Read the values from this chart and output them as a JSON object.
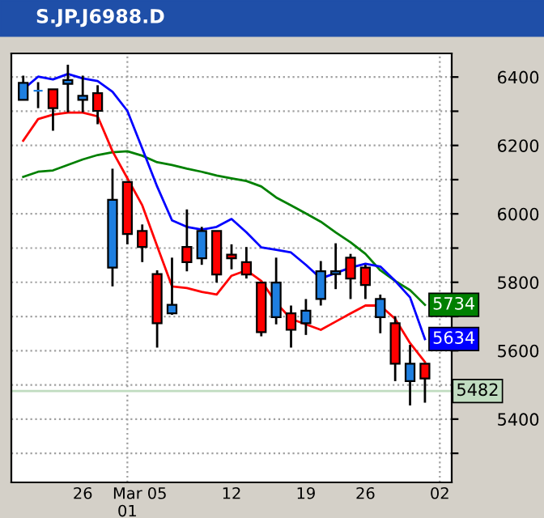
{
  "chart_data": {
    "type": "candlestick",
    "title": "S.JP.J6988.D",
    "categories": [
      null,
      null,
      null,
      null,
      "26",
      null,
      null,
      "Mar\n01",
      null,
      "05",
      null,
      null,
      null,
      null,
      "12",
      null,
      null,
      null,
      null,
      "19",
      null,
      null,
      null,
      "26",
      null,
      null,
      null,
      null,
      "02"
    ],
    "ohlc": [
      [
        6333,
        6404,
        6333,
        6383
      ],
      [
        6360,
        6385,
        6309,
        6360
      ],
      [
        6364,
        6364,
        6243,
        6309
      ],
      [
        6380,
        6436,
        6297,
        6391
      ],
      [
        6333,
        6404,
        6297,
        6345
      ],
      [
        6353,
        6376,
        6262,
        6301
      ],
      [
        5843,
        6132,
        5788,
        6041
      ],
      [
        6093,
        6093,
        5911,
        5941
      ],
      [
        5950,
        5969,
        5859,
        5903
      ],
      [
        5824,
        5835,
        5609,
        5680
      ],
      [
        5709,
        5872,
        5705,
        5734
      ],
      [
        5903,
        6013,
        5832,
        5859
      ],
      [
        5870,
        5962,
        5851,
        5950
      ],
      [
        5950,
        5950,
        5799,
        5823
      ],
      [
        5881,
        5911,
        5838,
        5870
      ],
      [
        5859,
        5903,
        5811,
        5823
      ],
      [
        5799,
        5799,
        5642,
        5654
      ],
      [
        5698,
        5872,
        5677,
        5799
      ],
      [
        5709,
        5732,
        5609,
        5661
      ],
      [
        5680,
        5751,
        5646,
        5717
      ],
      [
        5751,
        5862,
        5732,
        5832
      ],
      [
        5824,
        5914,
        5780,
        5832
      ],
      [
        5872,
        5883,
        5751,
        5811
      ],
      [
        5843,
        5851,
        5751,
        5792
      ],
      [
        5698,
        5764,
        5651,
        5751
      ],
      [
        5680,
        5701,
        5511,
        5562
      ],
      [
        5511,
        5617,
        5440,
        5562
      ],
      [
        5562,
        5562,
        5448,
        5519
      ],
      null
    ],
    "colors": [
      "#1e7fe0",
      "#1e7fe0",
      "#ff0000",
      "#1e7fe0",
      "#1e7fe0",
      "#ff0000",
      "#1e7fe0",
      "#ff0000",
      "#ff0000",
      "#ff0000",
      "#1e7fe0",
      "#ff0000",
      "#1e7fe0",
      "#ff0000",
      "#ff0000",
      "#ff0000",
      "#ff0000",
      "#1e7fe0",
      "#ff0000",
      "#1e7fe0",
      "#1e7fe0",
      "#1e7fe0",
      "#ff0000",
      "#ff0000",
      "#1e7fe0",
      "#ff0000",
      "#1e7fe0",
      "#ff0000",
      null
    ],
    "series": [
      {
        "type": "line",
        "color": "#008000",
        "values": [
          6108,
          6123,
          6127,
          6143,
          6159,
          6172,
          6180,
          6183,
          6170,
          6151,
          6143,
          6132,
          6123,
          6112,
          6104,
          6096,
          6080,
          6048,
          6025,
          6001,
          5977,
          5946,
          5917,
          5883,
          5835,
          5804,
          5777,
          5734,
          null
        ],
        "value_labels": [
          null,
          null,
          null,
          null,
          null,
          null,
          null,
          null,
          null,
          null,
          null,
          null,
          null,
          null,
          null,
          null,
          null,
          null,
          null,
          null,
          null,
          null,
          null,
          null,
          null,
          null,
          null,
          "5734",
          null
        ]
      },
      {
        "type": "line",
        "color": "#0000ff",
        "values": [
          6364,
          6401,
          6393,
          6409,
          6396,
          6388,
          6357,
          6301,
          6191,
          6080,
          5981,
          5962,
          5954,
          5962,
          5985,
          5946,
          5902,
          5895,
          5887,
          5851,
          5811,
          5827,
          5843,
          5854,
          5846,
          5804,
          5756,
          5634,
          null
        ],
        "value_labels": [
          null,
          null,
          null,
          null,
          null,
          null,
          null,
          null,
          null,
          null,
          null,
          null,
          null,
          null,
          null,
          null,
          null,
          null,
          null,
          null,
          null,
          null,
          null,
          null,
          null,
          null,
          null,
          "5634",
          null
        ]
      },
      {
        "type": "line",
        "color": "#ff0000",
        "values": [
          6214,
          6277,
          6290,
          6296,
          6296,
          6285,
          6183,
          6104,
          6025,
          5906,
          5788,
          5783,
          5772,
          5764,
          5819,
          5835,
          5804,
          5740,
          5693,
          5677,
          5661,
          5685,
          5709,
          5732,
          5732,
          5693,
          5622,
          5567,
          null
        ]
      }
    ],
    "ylim": [
      5215,
      6469
    ],
    "yticks": [
      {
        "value": 5300,
        "label": null
      },
      5400,
      {
        "value": 5500,
        "label": null
      },
      5600,
      {
        "value": 5700,
        "label": null
      },
      5800,
      {
        "value": 5900,
        "label": null
      },
      6000,
      {
        "value": 6100,
        "label": null
      },
      6200,
      {
        "value": 6300,
        "label": null
      },
      6400
    ],
    "grid": "y",
    "ref_lines": [
      {
        "axis": "y",
        "value": 5482,
        "label": "5482",
        "color": "#c0dcc0"
      },
      {
        "axis": "x",
        "value": "Mar\n01",
        "line_style": "dotted",
        "color": "#a0a0a0"
      },
      {
        "axis": "x",
        "value": "02",
        "line_style": "dotted",
        "color": "#a0a0a0"
      }
    ]
  }
}
